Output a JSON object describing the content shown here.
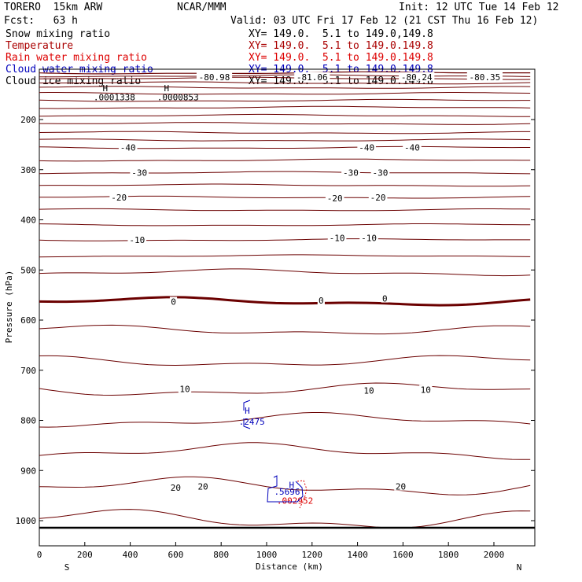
{
  "header": {
    "model": "TORERO  15km ARW",
    "org": "NCAR/MMM",
    "init": "Init: 12 UTC Tue 14 Feb 12",
    "fcst": "Fcst:   63 h",
    "valid": "Valid: 03 UTC Fri 17 Feb 12 (21 CST Thu 16 Feb 12)"
  },
  "legend": [
    {
      "name": "Snow mixing ratio",
      "color": "#000000",
      "xy": "XY= 149.0.  5.1 to 149.0,149.8"
    },
    {
      "name": "Temperature",
      "color": "#aa0000",
      "xy": "XY= 149.0.  5.1 to 149.0.149.8"
    },
    {
      "name": "Rain water mixing ratio",
      "color": "#dd0000",
      "xy": "XY= 149.0.  5.1 to 149.0.149.8"
    },
    {
      "name": "Cloud water mixing ratio",
      "color": "#0000bb",
      "xy": "XY= 149.0.  5.1 to 149.0.149.8"
    },
    {
      "name": "Cloud ice mixing ratio",
      "color": "#000000",
      "xy": "XY= 149.0.  5.1 to 149.0.149.8"
    }
  ],
  "chart_data": {
    "type": "cross-section contour",
    "xlabel": "Distance (km)",
    "ylabel": "Pressure (hPa)",
    "xlim": [
      0,
      2180
    ],
    "ylim_hpa": [
      1050,
      100
    ],
    "xticks": [
      0,
      200,
      400,
      600,
      800,
      1000,
      1200,
      1400,
      1600,
      1800,
      2000
    ],
    "yticks": [
      200,
      300,
      400,
      500,
      600,
      700,
      800,
      900,
      1000
    ],
    "x_endpoints": {
      "left": "S",
      "right": "N"
    },
    "temperature_contours": [
      {
        "level": -80.98,
        "label": "-80.98",
        "x": 770,
        "p": 115
      },
      {
        "level": -81.06,
        "label": "-81.06",
        "x": 1200,
        "p": 115
      },
      {
        "level": -80.35,
        "label": "-80.35",
        "x": 1960,
        "p": 115
      },
      {
        "level": -80.24,
        "label": "-80.24",
        "x": 1660,
        "p": 115
      },
      {
        "level": -40,
        "label": "-40",
        "x": 390,
        "p": 256
      },
      {
        "level": -40,
        "label": "-40",
        "x": 1440,
        "p": 256
      },
      {
        "level": -40,
        "label": "-40",
        "x": 1640,
        "p": 256
      },
      {
        "level": -30,
        "label": "-30",
        "x": 440,
        "p": 306
      },
      {
        "level": -30,
        "label": "-30",
        "x": 1370,
        "p": 306
      },
      {
        "level": -30,
        "label": "-30",
        "x": 1500,
        "p": 306
      },
      {
        "level": -20,
        "label": "-20",
        "x": 350,
        "p": 355
      },
      {
        "level": -20,
        "label": "-20",
        "x": 1300,
        "p": 357
      },
      {
        "level": -20,
        "label": "-20",
        "x": 1490,
        "p": 355
      },
      {
        "level": -10,
        "label": "-10",
        "x": 430,
        "p": 440
      },
      {
        "level": -10,
        "label": "-10",
        "x": 1310,
        "p": 436
      },
      {
        "level": -10,
        "label": "-10",
        "x": 1450,
        "p": 436
      },
      {
        "level": 0,
        "label": "0",
        "x": 590,
        "p": 563
      },
      {
        "level": 0,
        "label": "0",
        "x": 1240,
        "p": 561
      },
      {
        "level": 0,
        "label": "0",
        "x": 1520,
        "p": 557
      },
      {
        "level": 10,
        "label": "10",
        "x": 640,
        "p": 737
      },
      {
        "level": 10,
        "label": "10",
        "x": 1450,
        "p": 740
      },
      {
        "level": 10,
        "label": "10",
        "x": 1700,
        "p": 739
      },
      {
        "level": 20,
        "label": "20",
        "x": 600,
        "p": 934
      },
      {
        "level": 20,
        "label": "20",
        "x": 720,
        "p": 932
      },
      {
        "level": 20,
        "label": "20",
        "x": 1590,
        "p": 932
      }
    ],
    "ice_max": [
      {
        "label": "H",
        "x": 290,
        "p": 137
      },
      {
        "label": "H",
        "x": 560,
        "p": 137
      },
      {
        "label": ".0001338",
        "x": 330,
        "p": 155
      },
      {
        "label": ".0000853",
        "x": 610,
        "p": 155
      }
    ],
    "cloud_water_max": [
      {
        "label": "H",
        "x": 915,
        "p": 780
      },
      {
        "label": ".2475",
        "x": 935,
        "p": 802
      },
      {
        "label": "H",
        "x": 1110,
        "p": 929
      },
      {
        "label": ".5696",
        "x": 1090,
        "p": 942
      }
    ],
    "rain_max": [
      {
        "label": ".002952",
        "x": 1125,
        "p": 960
      }
    ]
  }
}
